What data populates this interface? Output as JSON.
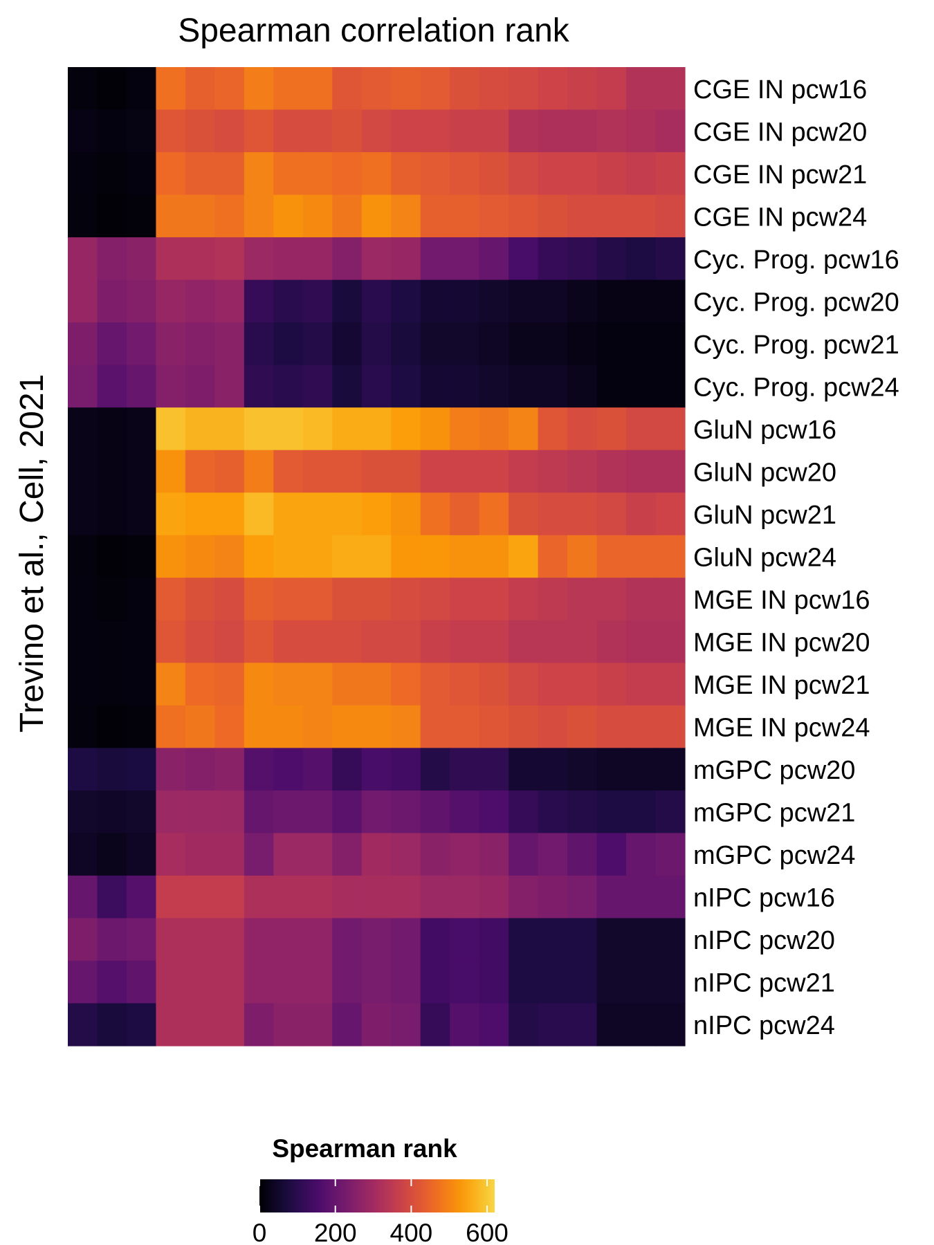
{
  "chart_data": {
    "type": "heatmap",
    "title": "Spearman correlation rank",
    "ylabel": "Trevino et al., Cell, 2021",
    "xlabel": "",
    "rows": [
      "CGE IN pcw16",
      "CGE IN pcw20",
      "CGE IN pcw21",
      "CGE IN pcw24",
      "Cyc. Prog. pcw16",
      "Cyc. Prog. pcw20",
      "Cyc. Prog. pcw21",
      "Cyc. Prog. pcw24",
      "GluN pcw16",
      "GluN pcw20",
      "GluN pcw21",
      "GluN pcw24",
      "MGE IN pcw16",
      "MGE IN pcw20",
      "MGE IN pcw21",
      "MGE IN pcw24",
      "mGPC pcw20",
      "mGPC pcw21",
      "mGPC pcw24",
      "nIPC pcw16",
      "nIPC pcw20",
      "nIPC pcw21",
      "nIPC pcw24"
    ],
    "columns_count": 21,
    "values": [
      [
        10,
        5,
        12,
        470,
        440,
        450,
        490,
        470,
        470,
        420,
        430,
        440,
        430,
        410,
        400,
        390,
        380,
        370,
        360,
        330,
        330
      ],
      [
        20,
        15,
        18,
        420,
        410,
        400,
        420,
        400,
        400,
        410,
        390,
        380,
        380,
        370,
        370,
        330,
        320,
        320,
        330,
        320,
        310
      ],
      [
        15,
        8,
        14,
        460,
        440,
        440,
        500,
        470,
        470,
        460,
        470,
        440,
        430,
        420,
        410,
        390,
        380,
        380,
        370,
        360,
        370
      ],
      [
        10,
        5,
        8,
        480,
        480,
        470,
        500,
        520,
        510,
        480,
        520,
        500,
        440,
        440,
        430,
        420,
        410,
        400,
        400,
        400,
        390
      ],
      [
        280,
        250,
        260,
        320,
        320,
        330,
        290,
        280,
        280,
        250,
        290,
        280,
        220,
        220,
        200,
        150,
        120,
        110,
        90,
        80,
        90
      ],
      [
        280,
        240,
        250,
        280,
        270,
        280,
        120,
        100,
        110,
        70,
        100,
        80,
        60,
        60,
        50,
        40,
        40,
        30,
        20,
        20,
        20
      ],
      [
        240,
        200,
        220,
        260,
        250,
        260,
        100,
        80,
        90,
        60,
        90,
        70,
        50,
        50,
        40,
        30,
        30,
        20,
        15,
        15,
        15
      ],
      [
        230,
        180,
        200,
        250,
        240,
        260,
        110,
        100,
        110,
        70,
        100,
        80,
        60,
        60,
        50,
        40,
        40,
        30,
        15,
        15,
        15
      ],
      [
        25,
        20,
        25,
        590,
        570,
        570,
        590,
        590,
        580,
        560,
        560,
        540,
        520,
        490,
        480,
        500,
        420,
        400,
        410,
        390,
        390
      ],
      [
        25,
        20,
        25,
        520,
        450,
        440,
        490,
        430,
        420,
        420,
        410,
        410,
        380,
        380,
        380,
        360,
        350,
        340,
        330,
        320,
        320
      ],
      [
        25,
        20,
        25,
        550,
        540,
        540,
        580,
        550,
        550,
        550,
        540,
        520,
        470,
        440,
        470,
        410,
        400,
        400,
        390,
        370,
        380
      ],
      [
        10,
        5,
        8,
        520,
        510,
        500,
        540,
        550,
        550,
        560,
        560,
        530,
        530,
        520,
        520,
        550,
        450,
        480,
        450,
        450,
        450
      ],
      [
        15,
        8,
        12,
        430,
        410,
        400,
        440,
        430,
        430,
        410,
        410,
        400,
        390,
        380,
        380,
        360,
        350,
        340,
        340,
        330,
        330
      ],
      [
        15,
        10,
        15,
        420,
        400,
        390,
        420,
        400,
        400,
        400,
        390,
        390,
        370,
        360,
        360,
        340,
        340,
        340,
        330,
        320,
        320
      ],
      [
        15,
        10,
        15,
        500,
        460,
        450,
        510,
        500,
        500,
        480,
        480,
        460,
        430,
        420,
        410,
        390,
        380,
        380,
        370,
        360,
        360
      ],
      [
        10,
        5,
        8,
        470,
        480,
        460,
        510,
        510,
        500,
        510,
        510,
        500,
        430,
        430,
        420,
        410,
        400,
        410,
        400,
        400,
        400
      ],
      [
        80,
        70,
        75,
        260,
        250,
        260,
        170,
        160,
        170,
        120,
        150,
        140,
        90,
        110,
        110,
        60,
        60,
        50,
        40,
        40,
        40
      ],
      [
        50,
        45,
        50,
        290,
        290,
        290,
        200,
        210,
        210,
        180,
        220,
        210,
        190,
        170,
        160,
        120,
        100,
        90,
        80,
        80,
        90
      ],
      [
        40,
        30,
        40,
        310,
        300,
        300,
        230,
        290,
        290,
        250,
        300,
        290,
        260,
        270,
        260,
        200,
        220,
        190,
        160,
        200,
        210
      ],
      [
        200,
        130,
        170,
        360,
        360,
        360,
        320,
        320,
        320,
        310,
        310,
        310,
        290,
        290,
        280,
        250,
        240,
        230,
        200,
        200,
        200
      ],
      [
        240,
        210,
        220,
        320,
        320,
        320,
        270,
        270,
        270,
        220,
        230,
        220,
        140,
        150,
        140,
        80,
        80,
        80,
        50,
        50,
        50
      ],
      [
        200,
        170,
        190,
        320,
        320,
        320,
        270,
        270,
        270,
        220,
        230,
        220,
        140,
        150,
        140,
        80,
        80,
        80,
        50,
        50,
        50
      ],
      [
        90,
        70,
        80,
        320,
        320,
        320,
        240,
        260,
        260,
        200,
        240,
        230,
        120,
        170,
        160,
        90,
        100,
        100,
        40,
        40,
        40
      ]
    ],
    "colorbar": {
      "title": "Spearman rank",
      "range": [
        0,
        620
      ],
      "ticks": [
        "0",
        "200",
        "400",
        "600"
      ],
      "tick_values": [
        0,
        200,
        400,
        600
      ],
      "palette": "inferno",
      "colors": [
        "#000004",
        "#1b0c41",
        "#4a0c6b",
        "#781c6d",
        "#a52c60",
        "#cf4446",
        "#ed6925",
        "#fb9b06",
        "#f7d13d",
        "#fcffa4"
      ]
    },
    "legend_position": "bottom",
    "grid": false
  }
}
